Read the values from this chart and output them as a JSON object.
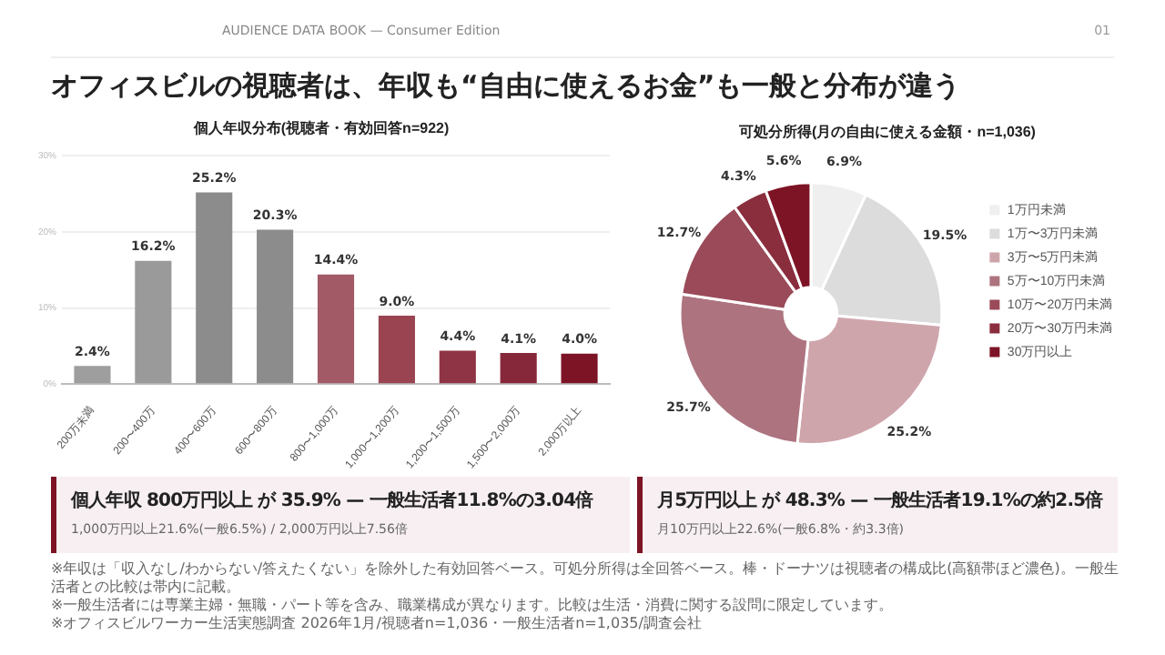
{
  "chart_data": [
    {
      "type": "bar",
      "title": "個人年収分布(視聴者・有効回答n=922)",
      "categories": [
        "200万未満",
        "200〜400万",
        "400〜600万",
        "600〜800万",
        "800〜1,000万",
        "1,000〜1,200万",
        "1,200〜1,500万",
        "1,500〜2,000万",
        "2,000万以上"
      ],
      "values": [
        2.4,
        16.2,
        25.2,
        20.3,
        14.4,
        9.0,
        4.4,
        4.1,
        4.0
      ],
      "value_labels": [
        "2.4%",
        "16.2%",
        "25.2%",
        "20.3%",
        "14.4%",
        "9.0%",
        "4.4%",
        "4.1%",
        "4.0%"
      ],
      "colors": [
        "#9e9e9e",
        "#9a9a9a",
        "#8c8c8c",
        "#8c8c8c",
        "#a25a67",
        "#9a4452",
        "#8f3444",
        "#87283a",
        "#7d1425"
      ],
      "ylim": [
        0,
        30
      ],
      "yticks": [
        {
          "value": 0,
          "label": "0%"
        },
        {
          "value": 10,
          "label": "10%"
        },
        {
          "value": 20,
          "label": "20%"
        },
        {
          "value": 30,
          "label": "30%"
        }
      ],
      "grid": "y",
      "legend": false
    },
    {
      "type": "donut",
      "title": "可処分所得(月の自由に使える金額・n=1,036)",
      "categories": [
        "1万円未満",
        "1万〜3万円未満",
        "3万〜5万円未満",
        "5万〜10万円未満",
        "10万〜20万円未満",
        "20万〜30万円未満",
        "30万円以上"
      ],
      "values": [
        6.9,
        19.5,
        25.2,
        25.7,
        12.7,
        4.3,
        5.6
      ],
      "value_labels": [
        "6.9%",
        "19.5%",
        "25.2%",
        "25.7%",
        "12.7%",
        "4.3%",
        "5.6%"
      ],
      "colors": [
        "#efefef",
        "#dcdcdc",
        "#cfa5ac",
        "#ad7480",
        "#9a4a58",
        "#8a2e3e",
        "#7d1425"
      ],
      "legend": "right"
    },
    {
      "type": "other",
      "title": "オフィスビルの視聴者は、年収も“自由に使えるお金”も一般と分布が違う",
      "subtitle": "AUDIENCE DATA BOOK — Consumer Edition",
      "annotations": [
        "01",
        "個人年収 800万円以上 が 35.9% — 一般生活者11.8%の3.04倍",
        "1,000万円以上21.6%(一般6.5%) / 2,000万円以上7.56倍",
        "月5万円以上 が 48.3% — 一般生活者19.1%の約2.5倍",
        "月10万円以上22.6%(一般6.8%・約3.3倍)",
        "※年収は「収入なし/わからない/答えたくない」を除外した有効回答ベース。可処分所得は全回答ベース。棒・ドーナツは視聴者の構成比(高額帯ほど濃色)。一般生活者との比較は帯内に記載。",
        "※一般生活者には専業主婦・無職・パート等を含み、職業構成が異なります。比較は生活・消費に関する設問に限定しています。",
        "※オフィスビルワーカー生活実態調査 2026年1月/視聴者n=1,036・一般生活者n=1,035/調査会社"
      ]
    }
  ]
}
